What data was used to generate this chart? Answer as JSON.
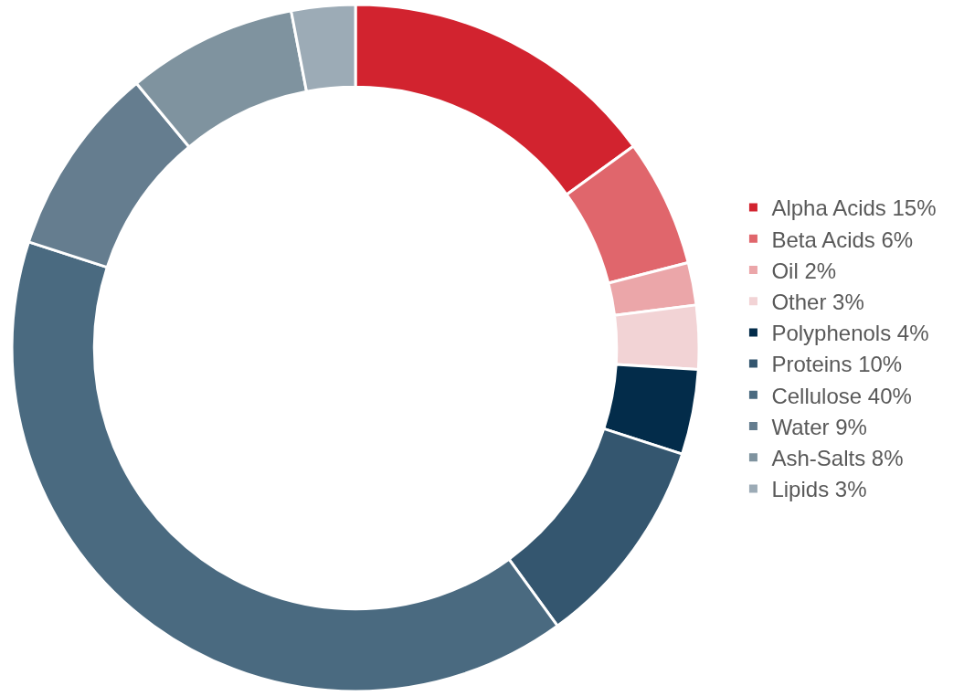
{
  "chart_data": {
    "type": "donut",
    "categories": [
      "Alpha Acids 15%",
      "Beta Acids 6%",
      "Oil 2%",
      "Other 3%",
      "Polyphenols 4%",
      "Proteins 10%",
      "Cellulose 40%",
      "Water 9%",
      "Ash-Salts 8%",
      "Lipids 3%"
    ],
    "values": [
      15,
      6,
      2,
      3,
      4,
      10,
      40,
      9,
      8,
      3
    ],
    "colors": [
      "#d2232f",
      "#e0666c",
      "#eba6a9",
      "#f2d3d5",
      "#032c4a",
      "#34566f",
      "#4a6a80",
      "#657d8f",
      "#7f939f",
      "#9cabb6"
    ],
    "legend": "right"
  }
}
